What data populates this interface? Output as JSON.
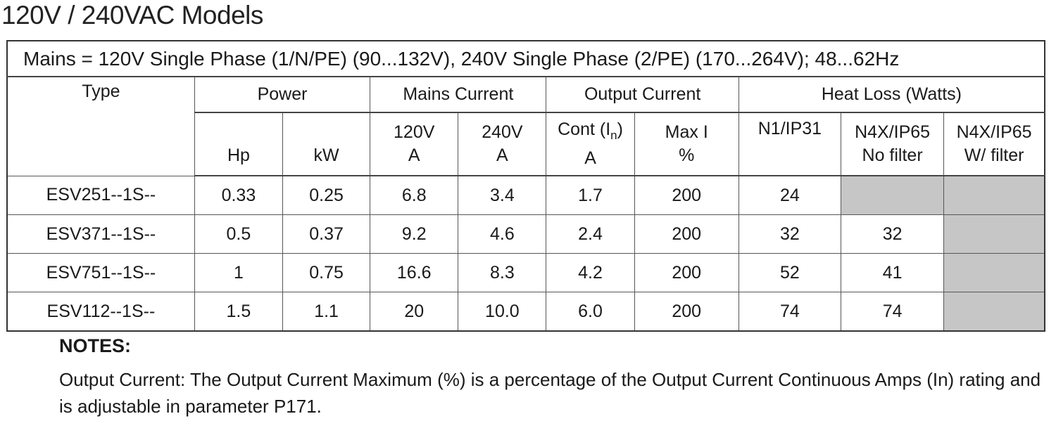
{
  "title": "120V / 240VAC Models",
  "table": {
    "mains": "Mains = 120V Single Phase (1/N/PE) (90...132V), 240V Single Phase (2/PE) (170...264V); 48...62Hz",
    "groups": {
      "type": "Type",
      "power": "Power",
      "mains_current": "Mains Current",
      "output_current": "Output Current",
      "heat_loss": "Heat Loss (Watts)"
    },
    "sub": {
      "hp": "Hp",
      "kw": "kW",
      "v120_line1": "120V",
      "v120_line2": "A",
      "v240_line1": "240V",
      "v240_line2": "A",
      "cont_prefix": "Cont (I",
      "cont_sub": "n",
      "cont_suffix": ")",
      "cont_line2": "A",
      "max_line1": "Max I",
      "max_line2": "%",
      "n1": "N1/IP31",
      "n4x_nf_line1": "N4X/IP65",
      "n4x_nf_line2": "No filter",
      "n4x_wf_line1": "N4X/IP65",
      "n4x_wf_line2": "W/ filter"
    },
    "rows": [
      {
        "type": "ESV251--1S--",
        "hp": "0.33",
        "kw": "0.25",
        "a120": "6.8",
        "a240": "3.4",
        "cont": "1.7",
        "max": "200",
        "n1": "24",
        "n4x_nf": "",
        "n4x_wf": ""
      },
      {
        "type": "ESV371--1S--",
        "hp": "0.5",
        "kw": "0.37",
        "a120": "9.2",
        "a240": "4.6",
        "cont": "2.4",
        "max": "200",
        "n1": "32",
        "n4x_nf": "32",
        "n4x_wf": ""
      },
      {
        "type": "ESV751--1S--",
        "hp": "1",
        "kw": "0.75",
        "a120": "16.6",
        "a240": "8.3",
        "cont": "4.2",
        "max": "200",
        "n1": "52",
        "n4x_nf": "41",
        "n4x_wf": ""
      },
      {
        "type": "ESV112--1S--",
        "hp": "1.5",
        "kw": "1.1",
        "a120": "20",
        "a240": "10.0",
        "cont": "6.0",
        "max": "200",
        "n1": "74",
        "n4x_nf": "74",
        "n4x_wf": ""
      }
    ]
  },
  "notes": {
    "label": "NOTES:",
    "text": "Output Current: The Output Current Maximum (%) is a percentage of the Output Current Continuous Amps (In) rating and is adjustable in parameter P171."
  }
}
